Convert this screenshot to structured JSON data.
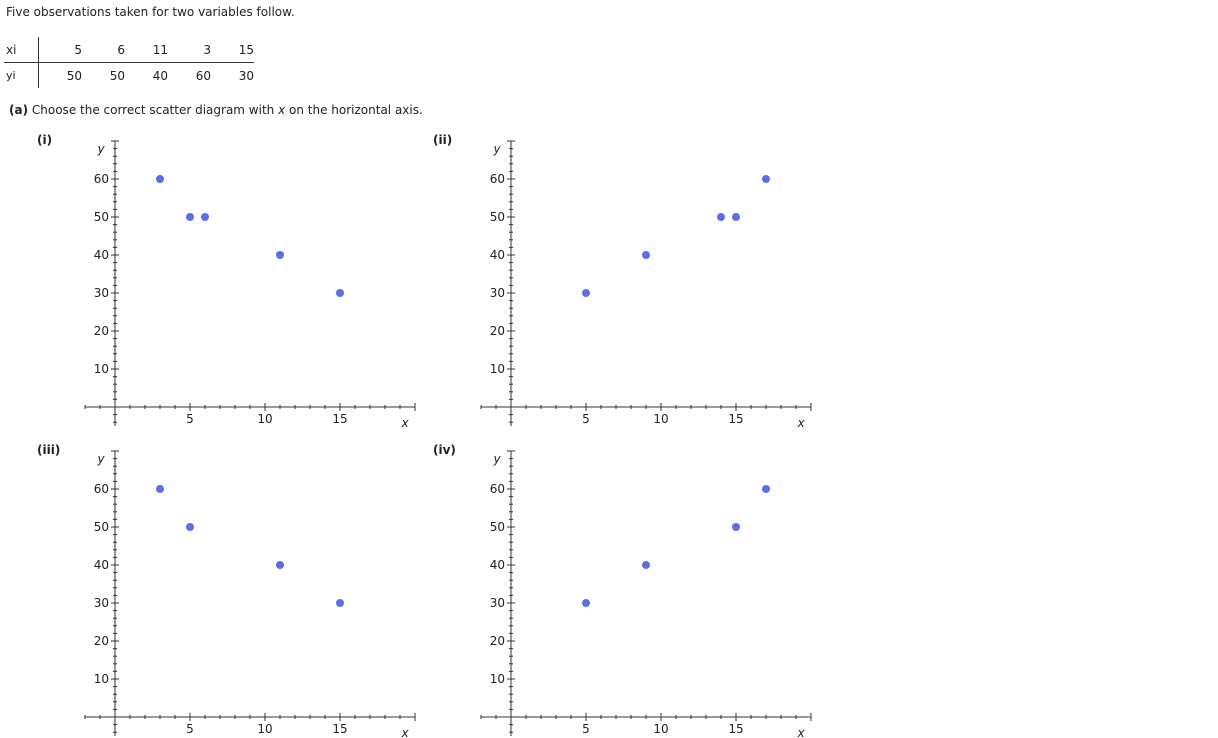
{
  "intro_text": "Five observations taken for two variables follow.",
  "table": {
    "row_labels": [
      "xi",
      "yi"
    ],
    "x_values": [
      "5",
      "6",
      "11",
      "3",
      "15"
    ],
    "y_values": [
      "50",
      "50",
      "40",
      "60",
      "30"
    ]
  },
  "question": {
    "part": "(a)",
    "text_before": " Choose the correct scatter diagram with ",
    "var": "x",
    "text_after": " on the horizontal axis."
  },
  "panel_labels": [
    "(i)",
    "(ii)",
    "(iii)",
    "(iv)"
  ],
  "point_color": "#5b6ee8",
  "chart_data": [
    {
      "type": "scatter",
      "title": "(i)",
      "xlabel": "x",
      "ylabel": "y",
      "x_ticks": [
        5,
        10,
        15
      ],
      "y_ticks": [
        10,
        20,
        30,
        40,
        50,
        60
      ],
      "xlim": [
        -2,
        20
      ],
      "ylim": [
        -5,
        70
      ],
      "grid": false,
      "points": [
        [
          3,
          60
        ],
        [
          5,
          50
        ],
        [
          6,
          50
        ],
        [
          11,
          40
        ],
        [
          15,
          30
        ]
      ]
    },
    {
      "type": "scatter",
      "title": "(ii)",
      "xlabel": "x",
      "ylabel": "y",
      "x_ticks": [
        5,
        10,
        15
      ],
      "y_ticks": [
        10,
        20,
        30,
        40,
        50,
        60
      ],
      "xlim": [
        -2,
        20
      ],
      "ylim": [
        -5,
        70
      ],
      "grid": false,
      "points": [
        [
          5,
          30
        ],
        [
          9,
          40
        ],
        [
          14,
          50
        ],
        [
          15,
          50
        ],
        [
          17,
          60
        ]
      ]
    },
    {
      "type": "scatter",
      "title": "(iii)",
      "xlabel": "x",
      "ylabel": "y",
      "x_ticks": [
        5,
        10,
        15
      ],
      "y_ticks": [
        10,
        20,
        30,
        40,
        50,
        60
      ],
      "xlim": [
        -2,
        20
      ],
      "ylim": [
        -5,
        70
      ],
      "grid": false,
      "points": [
        [
          3,
          60
        ],
        [
          5,
          50
        ],
        [
          11,
          40
        ],
        [
          15,
          30
        ]
      ]
    },
    {
      "type": "scatter",
      "title": "(iv)",
      "xlabel": "x",
      "ylabel": "y",
      "x_ticks": [
        5,
        10,
        15
      ],
      "y_ticks": [
        10,
        20,
        30,
        40,
        50,
        60
      ],
      "xlim": [
        -2,
        20
      ],
      "ylim": [
        -5,
        70
      ],
      "grid": false,
      "points": [
        [
          5,
          30
        ],
        [
          9,
          40
        ],
        [
          15,
          50
        ],
        [
          17,
          60
        ]
      ]
    }
  ]
}
